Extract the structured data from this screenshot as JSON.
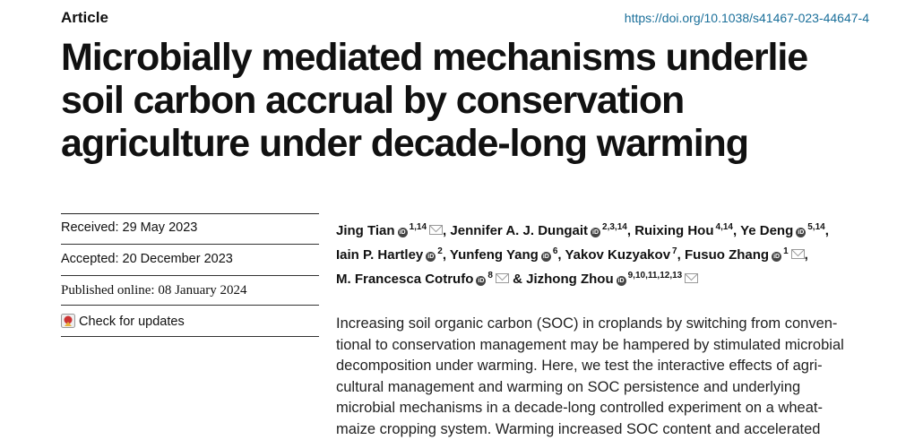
{
  "header": {
    "label": "Article",
    "doi": "https://doi.org/10.1038/s41467-023-44647-4"
  },
  "title_lines": [
    "Microbially mediated mechanisms underlie",
    "soil carbon accrual by conservation",
    "agriculture under decade-long warming"
  ],
  "dates": {
    "received": "Received: 29 May 2023",
    "accepted": "Accepted: 20 December 2023",
    "published": "Published online: 08 January 2024"
  },
  "check_updates": "Check for updates",
  "authors": [
    {
      "name": "Jing Tian",
      "affiliations": "1,14",
      "separator": ","
    },
    {
      "name": "Jennifer A. J. Dungait",
      "affiliations": "2,3,14",
      "separator": ","
    },
    {
      "name": "Ruixing Hou",
      "affiliations": "4,14",
      "separator": ","
    },
    {
      "name": "Ye Deng",
      "affiliations": "5,14",
      "separator": ","
    },
    {
      "name": "Iain P. Hartley",
      "affiliations": "2",
      "separator": ","
    },
    {
      "name": "Yunfeng Yang",
      "affiliations": "6",
      "separator": ","
    },
    {
      "name": "Yakov Kuzyakov",
      "affiliations": "7",
      "separator": ","
    },
    {
      "name": "Fusuo Zhang",
      "affiliations": "1",
      "separator": ","
    },
    {
      "name": "M. Francesca Cotrufo",
      "affiliations": "8",
      "separator": "&"
    },
    {
      "name": "Jizhong Zhou",
      "affiliations": "9,10,11,12,13"
    }
  ],
  "abstract_lines": [
    "Increasing soil organic carbon (SOC) in croplands by switching from conven-",
    "tional to conservation management may be hampered by stimulated microbial",
    "decomposition under warming. Here, we test the interactive effects of agri-",
    "cultural management and warming on SOC persistence and underlying",
    "microbial mechanisms in a decade-long controlled experiment on a wheat-",
    "maize cropping system. Warming increased SOC content and accelerated"
  ]
}
